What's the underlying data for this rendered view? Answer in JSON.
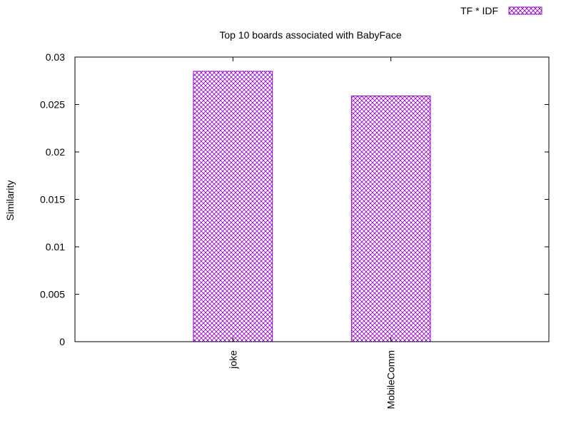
{
  "chart_data": {
    "type": "bar",
    "title": "Top 10 boards associated with BabyFace",
    "xlabel": "",
    "ylabel": "Similarity",
    "categories": [
      "joke",
      "MobileComm"
    ],
    "series": [
      {
        "name": "TF * IDF",
        "values": [
          0.0285,
          0.0259
        ]
      }
    ],
    "ylim": [
      0,
      0.03
    ],
    "yticks": [
      0,
      0.005,
      0.01,
      0.015,
      0.02,
      0.025,
      0.03
    ],
    "ytick_labels": [
      "0",
      "0.005",
      "0.01",
      "0.015",
      "0.02",
      "0.025",
      "0.03"
    ],
    "legend_position": "top-right",
    "grid": false,
    "colors": {
      "bar_stroke": "#9400d3",
      "axis": "#000000",
      "background": "#ffffff"
    }
  }
}
